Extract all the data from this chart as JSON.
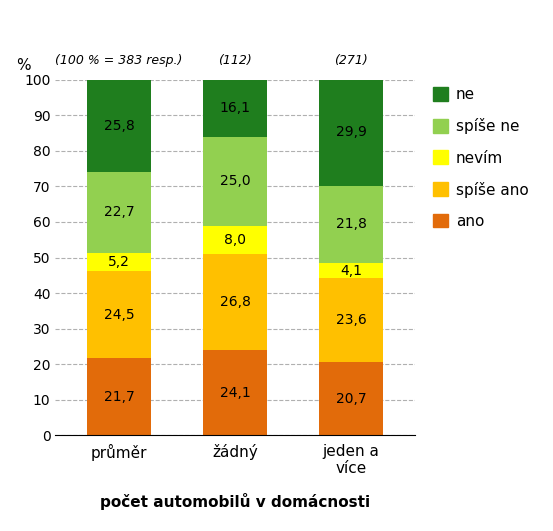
{
  "categories": [
    "průměr",
    "žádný",
    "jeden a\nvíce"
  ],
  "header_labels": [
    "(100 % = 383 resp.)",
    "(112)",
    "(271)"
  ],
  "series": [
    {
      "label": "ano",
      "color": "#e26b0a",
      "values": [
        21.7,
        24.1,
        20.7
      ]
    },
    {
      "label": "spíše ano",
      "color": "#ffc000",
      "values": [
        24.5,
        26.8,
        23.6
      ]
    },
    {
      "label": "nevím",
      "color": "#ffff00",
      "values": [
        5.2,
        8.0,
        4.1
      ]
    },
    {
      "label": "spíše ne",
      "color": "#92d050",
      "values": [
        22.7,
        25.0,
        21.8
      ]
    },
    {
      "label": "ne",
      "color": "#1f7e1e",
      "values": [
        25.8,
        16.1,
        29.9
      ]
    }
  ],
  "ylabel": "%",
  "xlabel": "počet automobilů v domácnosti",
  "ylim": [
    0,
    100
  ],
  "yticks": [
    0,
    10,
    20,
    30,
    40,
    50,
    60,
    70,
    80,
    90,
    100
  ],
  "grid_color": "#b0b0b0",
  "bar_width": 0.55,
  "figsize": [
    5.53,
    5.31
  ],
  "dpi": 100
}
